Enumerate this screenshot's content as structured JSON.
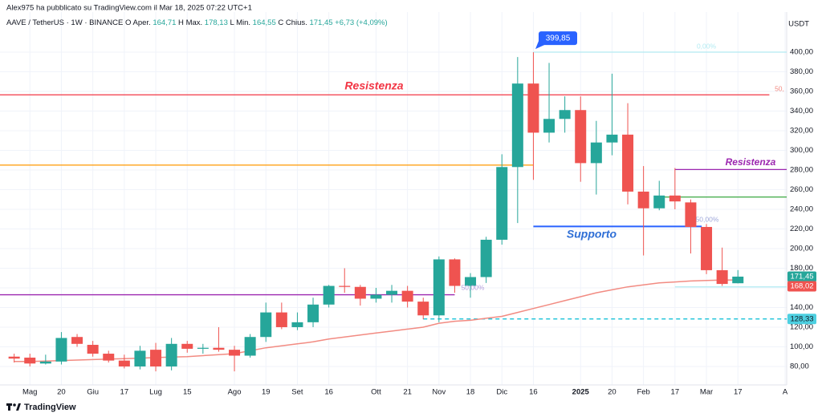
{
  "header": {
    "published": "Alex975 ha pubblicato su TradingView.com il Mar 18, 2025 07:22 UTC+1",
    "symbol": "AAVE / TetherUS · 1W · BINANCE",
    "ohlc": [
      {
        "key": "O",
        "name": "Aper.",
        "value": "164,71"
      },
      {
        "key": "H",
        "name": "Max.",
        "value": "178,13"
      },
      {
        "key": "L",
        "name": "Min.",
        "value": "164,55"
      },
      {
        "key": "C",
        "name": "Chius.",
        "value": "171,45"
      }
    ],
    "change": "+6,73 (+4,09%)"
  },
  "chart_data": {
    "type": "candlestick",
    "currency": "USDT",
    "up_color": "#26a69a",
    "down_color": "#ef5350",
    "open": [
      90,
      89,
      83,
      85,
      110,
      102,
      93,
      86,
      80,
      97,
      80,
      103,
      98,
      99,
      97,
      91,
      110,
      135,
      120,
      125,
      143,
      162,
      161,
      149,
      153,
      157,
      146,
      132,
      189,
      162,
      171,
      209,
      283,
      368,
      318,
      332,
      341,
      287,
      308,
      316,
      258,
      241,
      254,
      247,
      222,
      178,
      164.71
    ],
    "high": [
      93,
      93,
      92,
      115,
      113,
      106,
      96,
      92,
      101,
      104,
      109,
      106,
      103,
      120,
      101,
      113,
      145,
      145,
      135,
      150,
      163,
      180,
      163,
      160,
      163,
      162,
      150,
      192,
      190,
      175,
      212,
      296,
      395,
      399.85,
      389,
      355,
      355,
      330,
      378,
      348,
      284,
      269,
      282,
      250,
      225,
      201,
      178.13
    ],
    "low": [
      84,
      80,
      82,
      82,
      100,
      90,
      84,
      78,
      77,
      75,
      76,
      94,
      93,
      95,
      75,
      89,
      105,
      118,
      117,
      120,
      140,
      155,
      142,
      145,
      145,
      140,
      128,
      125,
      155,
      150,
      165,
      204,
      226,
      270,
      308,
      318,
      268,
      255,
      295,
      245,
      193,
      239,
      240,
      195,
      174,
      162,
      164.55
    ],
    "close": [
      88,
      83,
      85,
      109,
      103,
      93,
      86,
      80,
      96,
      80,
      103,
      98,
      99,
      97,
      91,
      110,
      135,
      120,
      125,
      143,
      162,
      161,
      149,
      153,
      157,
      146,
      132,
      189,
      162,
      171,
      209,
      283,
      368,
      318,
      332,
      341,
      287,
      308,
      316,
      258,
      241,
      254,
      248,
      222,
      178,
      164,
      171.45
    ],
    "ma": {
      "color": "#f28b82",
      "values": [
        85,
        85,
        85.5,
        86,
        86.5,
        87,
        87.5,
        88,
        88.5,
        89,
        89.5,
        90,
        91,
        92,
        93,
        96,
        99,
        101,
        103,
        105,
        108,
        110,
        112,
        114,
        116,
        118,
        120,
        124,
        126,
        127,
        129,
        131,
        135,
        139,
        143,
        147,
        151,
        155,
        158,
        161,
        163,
        165,
        166,
        167,
        167.5,
        168,
        168.02
      ]
    },
    "xlim": [
      -0.9,
      49.1
    ],
    "ylim": [
      61.2,
      440.8
    ],
    "xticks": [
      {
        "value": 1,
        "label": "Mag"
      },
      {
        "value": 3,
        "label": "20"
      },
      {
        "value": 5,
        "label": "Giu"
      },
      {
        "value": 7,
        "label": "17"
      },
      {
        "value": 9,
        "label": "Lug"
      },
      {
        "value": 11,
        "label": "15"
      },
      {
        "value": 14,
        "label": "Ago"
      },
      {
        "value": 16,
        "label": "19"
      },
      {
        "value": 18,
        "label": "Set"
      },
      {
        "value": 20,
        "label": "16"
      },
      {
        "value": 23,
        "label": "Ott"
      },
      {
        "value": 25,
        "label": "21"
      },
      {
        "value": 27,
        "label": "Nov"
      },
      {
        "value": 29,
        "label": "18"
      },
      {
        "value": 31,
        "label": "Dic"
      },
      {
        "value": 33,
        "label": "16"
      },
      {
        "value": 36,
        "label": "2025"
      },
      {
        "value": 38,
        "label": "20"
      },
      {
        "value": 40,
        "label": "Feb"
      },
      {
        "value": 42,
        "label": "17"
      },
      {
        "value": 44,
        "label": "Mar"
      },
      {
        "value": 46,
        "label": "17"
      },
      {
        "value": 49,
        "label": "A"
      }
    ],
    "yticks": [
      {
        "value": 80,
        "label": "80,00"
      },
      {
        "value": 100,
        "label": "100,00"
      },
      {
        "value": 120,
        "label": "120,00"
      },
      {
        "value": 140,
        "label": "140,00"
      },
      {
        "value": 160,
        "label": "160,00"
      },
      {
        "value": 180,
        "label": "180,00"
      },
      {
        "value": 200,
        "label": "200,00"
      },
      {
        "value": 220,
        "label": "220,00"
      },
      {
        "value": 240,
        "label": "240,00"
      },
      {
        "value": 260,
        "label": "260,00"
      },
      {
        "value": 280,
        "label": "280,00"
      },
      {
        "value": 300,
        "label": "300,00"
      },
      {
        "value": 320,
        "label": "320,00"
      },
      {
        "value": 340,
        "label": "340,00"
      },
      {
        "value": 360,
        "label": "360,00"
      },
      {
        "value": 380,
        "label": "380,00"
      },
      {
        "value": 400,
        "label": "400,00"
      }
    ],
    "grid": true,
    "levels": [
      {
        "value": 356.5,
        "from": -0.9,
        "to": 48,
        "color": "#f23645"
      },
      {
        "value": 285,
        "from": -0.9,
        "to": 33,
        "color": "#ff9800"
      },
      {
        "value": 153,
        "from": -0.9,
        "to": 28,
        "color": "#9c27b0"
      },
      {
        "value": 128.33,
        "from": 26,
        "to": 49.1,
        "color": "#00bcd4",
        "dashed": true
      },
      {
        "value": 400,
        "from": 33,
        "to": 49.1,
        "color": "#b2ebf2"
      },
      {
        "value": 280.5,
        "from": 42,
        "to": 49.1,
        "color": "#9c27b0"
      },
      {
        "value": 252.5,
        "from": 41,
        "to": 49.1,
        "color": "#4caf50"
      },
      {
        "value": 222.5,
        "from": 33,
        "to": 43.7,
        "color": "#2962ff"
      },
      {
        "value": 161,
        "from": 42,
        "to": 49.1,
        "color": "#b2ebf2"
      }
    ],
    "annotations": [
      {
        "text": "Resistenza",
        "color": "#f23645"
      },
      {
        "text": "Supporto",
        "color": "#2f6fd6"
      },
      {
        "text": "Resistenza",
        "color": "#9c27b0"
      },
      {
        "text": "50,00%",
        "color": "#b39ddb"
      },
      {
        "text": "50,00%",
        "color": "#9fa8da"
      },
      {
        "text": "0,00%",
        "color": "#b2ebf2"
      },
      {
        "text": "50,",
        "color": "#f28b82"
      }
    ],
    "callout": {
      "value": 399.85,
      "label": "399,85",
      "color": "#2962ff"
    },
    "price_labels": [
      {
        "value": 171.45,
        "label": "171,45",
        "color": "#26a69a"
      },
      {
        "value": 168.02,
        "label": "168,02",
        "color": "#ef5350"
      },
      {
        "value": 128.33,
        "label": "128,33",
        "color": "#4dd0e1"
      }
    ]
  },
  "footer": "TradingView"
}
